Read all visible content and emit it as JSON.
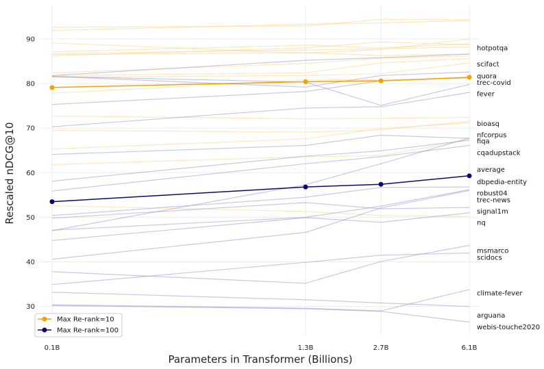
{
  "chart_data": {
    "type": "line",
    "title": "",
    "xlabel": "Parameters in Transformer (Billions)",
    "ylabel": "Rescaled nDCG@10",
    "x": [
      0.1,
      1.3,
      2.7,
      6.1
    ],
    "x_tick_labels": [
      "0.1B",
      "1.3B",
      "2.7B",
      "6.1B"
    ],
    "y_ticks": [
      30,
      40,
      50,
      60,
      70,
      80,
      90
    ],
    "ylim": [
      23.5,
      97.5
    ],
    "grid": true,
    "legend_position": "bottom-left",
    "colors": {
      "rerank10": "#f5a300",
      "rerank100": "#0a0a6e",
      "rerank10_faint": "#f8d58a",
      "rerank100_faint": "#9a97cc"
    },
    "highlight_series": [
      {
        "name": "Max Re-rank=10",
        "group": "rerank10",
        "values": [
          79.1,
          80.4,
          80.6,
          81.4
        ]
      },
      {
        "name": "Max Re-rank=100",
        "group": "rerank100",
        "values": [
          53.5,
          56.8,
          57.4,
          59.3
        ]
      }
    ],
    "background_series": [
      {
        "group": "rerank10",
        "values": [
          92.6,
          92.9,
          94.4,
          94.3
        ]
      },
      {
        "group": "rerank10",
        "values": [
          91.9,
          93.3,
          93.6,
          94.1
        ]
      },
      {
        "group": "rerank10",
        "values": [
          89.1,
          86.8,
          87.6,
          90.0
        ]
      },
      {
        "group": "rerank10",
        "values": [
          87.1,
          88.6,
          88.0,
          88.9
        ]
      },
      {
        "group": "rerank10",
        "values": [
          86.7,
          87.5,
          87.8,
          88.2
        ]
      },
      {
        "group": "rerank10",
        "values": [
          86.2,
          88.0,
          89.3,
          88.7
        ]
      },
      {
        "group": "rerank10",
        "values": [
          86.5,
          86.9,
          86.3,
          86.6
        ]
      },
      {
        "group": "rerank10",
        "values": [
          82.4,
          84.5,
          85.7,
          86.2
        ]
      },
      {
        "group": "rerank10",
        "values": [
          81.8,
          82.4,
          84.6,
          85.6
        ]
      },
      {
        "group": "rerank10",
        "values": [
          81.4,
          81.8,
          82.2,
          84.6
        ]
      },
      {
        "group": "rerank10",
        "values": [
          77.8,
          80.8,
          80.8,
          81.2
        ]
      },
      {
        "group": "rerank10",
        "values": [
          72.7,
          72.1,
          72.2,
          72.4
        ]
      },
      {
        "group": "rerank10",
        "values": [
          69.5,
          69.1,
          69.6,
          71.5
        ]
      },
      {
        "group": "rerank10",
        "values": [
          65.3,
          67.6,
          69.9,
          71.2
        ]
      },
      {
        "group": "rerank10",
        "values": [
          61.8,
          63.6,
          63.8,
          67.4
        ]
      },
      {
        "group": "rerank10",
        "values": [
          52.6,
          51.3,
          50.4,
          50.2
        ]
      },
      {
        "group": "rerank100",
        "values": [
          81.8,
          85.2,
          85.8,
          86.6
        ]
      },
      {
        "group": "rerank100",
        "values": [
          81.6,
          80.3,
          75.1,
          79.8
        ]
      },
      {
        "group": "rerank100",
        "values": [
          81.6,
          79.2,
          81.8,
          82.6
        ]
      },
      {
        "group": "rerank100",
        "values": [
          75.3,
          78.2,
          80.6,
          81.3
        ]
      },
      {
        "group": "rerank100",
        "values": [
          70.3,
          74.5,
          74.8,
          78.0
        ]
      },
      {
        "group": "rerank100",
        "values": [
          64.1,
          66.1,
          68.4,
          67.7
        ]
      },
      {
        "group": "rerank100",
        "values": [
          58.1,
          63.7,
          64.9,
          67.3
        ]
      },
      {
        "group": "rerank100",
        "values": [
          55.9,
          62.0,
          63.6,
          66.1
        ]
      },
      {
        "group": "rerank100",
        "values": [
          50.4,
          54.5,
          56.7,
          56.8
        ]
      },
      {
        "group": "rerank100",
        "values": [
          49.8,
          53.3,
          51.9,
          52.2
        ]
      },
      {
        "group": "rerank100",
        "values": [
          47.0,
          57.3,
          62.0,
          67.8
        ]
      },
      {
        "group": "rerank100",
        "values": [
          47.1,
          50.0,
          52.5,
          56.2
        ]
      },
      {
        "group": "rerank100",
        "values": [
          44.8,
          49.9,
          48.9,
          51.0
        ]
      },
      {
        "group": "rerank100",
        "values": [
          40.6,
          46.6,
          52.1,
          56.0
        ]
      },
      {
        "group": "rerank100",
        "values": [
          37.8,
          35.2,
          40.1,
          43.7
        ]
      },
      {
        "group": "rerank100",
        "values": [
          34.9,
          39.9,
          41.5,
          42.0
        ]
      },
      {
        "group": "rerank100",
        "values": [
          33.2,
          31.5,
          30.8,
          30.0
        ]
      },
      {
        "group": "rerank100",
        "values": [
          30.4,
          29.6,
          29.0,
          33.8
        ]
      },
      {
        "group": "rerank100",
        "values": [
          30.2,
          29.5,
          28.9,
          26.5
        ]
      }
    ],
    "dataset_labels": [
      {
        "text": "hotpotqa",
        "y": 88.0
      },
      {
        "text": "scifact",
        "y": 84.4
      },
      {
        "text": "quora",
        "y": 81.7
      },
      {
        "text": "trec-covid",
        "y": 80.2
      },
      {
        "text": "fever",
        "y": 77.7
      },
      {
        "text": "bioasq",
        "y": 71.0
      },
      {
        "text": "nfcorpus",
        "y": 68.5
      },
      {
        "text": "fiqa",
        "y": 67.1
      },
      {
        "text": "cqadupstack",
        "y": 64.5
      },
      {
        "text": "average",
        "y": 60.7
      },
      {
        "text": "dbpedia-entity",
        "y": 58.0
      },
      {
        "text": "robust04",
        "y": 55.4
      },
      {
        "text": "trec-news",
        "y": 53.9
      },
      {
        "text": "signal1m",
        "y": 51.4
      },
      {
        "text": "nq",
        "y": 48.8
      },
      {
        "text": "msmarco",
        "y": 42.5
      },
      {
        "text": "scidocs",
        "y": 41.0
      },
      {
        "text": "climate-fever",
        "y": 33.0
      },
      {
        "text": "arguana",
        "y": 28.0
      },
      {
        "text": "webis-touche2020",
        "y": 25.4
      }
    ],
    "legend": [
      "Max Re-rank=10",
      "Max Re-rank=100"
    ]
  }
}
